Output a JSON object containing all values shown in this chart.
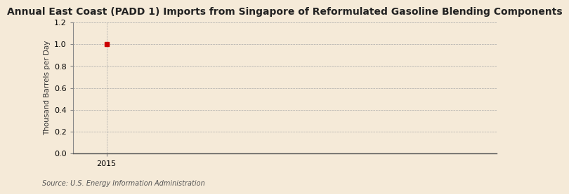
{
  "title": "Annual East Coast (PADD 1) Imports from Singapore of Reformulated Gasoline Blending Components",
  "ylabel": "Thousand Barrels per Day",
  "source": "Source: U.S. Energy Information Administration",
  "x_data": [
    2015
  ],
  "y_data": [
    1.0
  ],
  "marker_color": "#cc0000",
  "ylim": [
    0.0,
    1.2
  ],
  "yticks": [
    0.0,
    0.2,
    0.4,
    0.6,
    0.8,
    1.0,
    1.2
  ],
  "xlim_min": 2014.4,
  "xlim_max": 2022.0,
  "background_color": "#f5ead8",
  "grid_color": "#aaaaaa",
  "title_fontsize": 10,
  "label_fontsize": 7.5,
  "tick_fontsize": 8,
  "source_fontsize": 7
}
